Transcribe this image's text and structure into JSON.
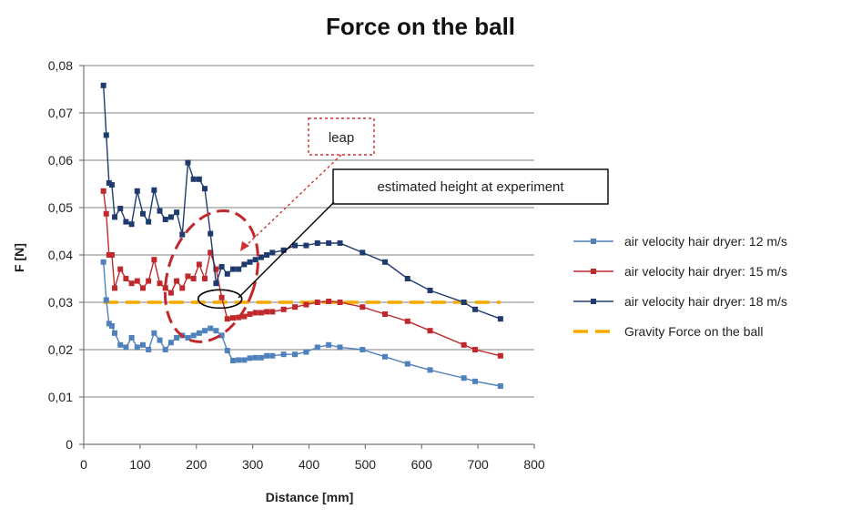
{
  "chart_data": {
    "type": "line",
    "title": "Force on the ball",
    "xlabel": "Distance [mm]",
    "ylabel": "F [N]",
    "xlim": [
      0,
      800
    ],
    "ylim": [
      0,
      0.08
    ],
    "xticks": [
      0,
      100,
      200,
      300,
      400,
      500,
      600,
      700,
      800
    ],
    "xtick_labels": [
      "0",
      "100",
      "200",
      "300",
      "400",
      "500",
      "600",
      "700",
      "800"
    ],
    "yticks": [
      0,
      0.01,
      0.02,
      0.03,
      0.04,
      0.05,
      0.06,
      0.07,
      0.08
    ],
    "ytick_labels": [
      "0",
      "0,01",
      "0,02",
      "0,03",
      "0,04",
      "0,05",
      "0,06",
      "0,07",
      "0,08"
    ],
    "grid": "horizontal",
    "legend_position": "right",
    "series": [
      {
        "name": "air velocity hair dryer: 12 m/s",
        "color": "#4f81bd",
        "marker": "square",
        "x": [
          35,
          40,
          45,
          50,
          55,
          65,
          75,
          85,
          95,
          105,
          115,
          125,
          135,
          145,
          155,
          165,
          175,
          185,
          195,
          205,
          215,
          225,
          235,
          245,
          255,
          265,
          275,
          285,
          295,
          305,
          315,
          325,
          335,
          355,
          375,
          395,
          415,
          435,
          455,
          495,
          535,
          575,
          615,
          675,
          695,
          740
        ],
        "y": [
          0.0385,
          0.0305,
          0.0255,
          0.025,
          0.0235,
          0.021,
          0.0205,
          0.0225,
          0.0205,
          0.021,
          0.02,
          0.0235,
          0.022,
          0.02,
          0.0215,
          0.0225,
          0.023,
          0.0225,
          0.023,
          0.0235,
          0.024,
          0.0245,
          0.024,
          0.023,
          0.0198,
          0.0177,
          0.0178,
          0.0178,
          0.0182,
          0.0183,
          0.0183,
          0.0187,
          0.0187,
          0.019,
          0.019,
          0.0195,
          0.0205,
          0.021,
          0.0205,
          0.02,
          0.0185,
          0.017,
          0.0157,
          0.014,
          0.0133,
          0.0123
        ]
      },
      {
        "name": "air velocity hair dryer: 15 m/s",
        "color": "#c0282b",
        "marker": "square",
        "x": [
          35,
          40,
          45,
          50,
          55,
          65,
          75,
          85,
          95,
          105,
          115,
          125,
          135,
          145,
          155,
          165,
          175,
          185,
          195,
          205,
          215,
          225,
          235,
          245,
          255,
          265,
          275,
          285,
          295,
          305,
          315,
          325,
          335,
          355,
          375,
          395,
          415,
          435,
          455,
          495,
          535,
          575,
          615,
          675,
          695,
          740
        ],
        "y": [
          0.0535,
          0.0487,
          0.04,
          0.04,
          0.033,
          0.037,
          0.035,
          0.034,
          0.0345,
          0.033,
          0.0345,
          0.039,
          0.034,
          0.033,
          0.032,
          0.0345,
          0.033,
          0.0355,
          0.035,
          0.038,
          0.035,
          0.0405,
          0.037,
          0.031,
          0.0265,
          0.0267,
          0.0268,
          0.027,
          0.0275,
          0.0278,
          0.0278,
          0.028,
          0.028,
          0.0285,
          0.029,
          0.0295,
          0.03,
          0.0302,
          0.03,
          0.029,
          0.0275,
          0.026,
          0.024,
          0.021,
          0.02,
          0.0187
        ]
      },
      {
        "name": "air velocity hair dryer: 18 m/s",
        "color": "#1f3a6e",
        "marker": "square",
        "x": [
          35,
          40,
          45,
          50,
          55,
          65,
          75,
          85,
          95,
          105,
          115,
          125,
          135,
          145,
          155,
          165,
          175,
          185,
          195,
          205,
          215,
          225,
          235,
          245,
          255,
          265,
          275,
          285,
          295,
          305,
          315,
          325,
          335,
          355,
          375,
          395,
          415,
          435,
          455,
          495,
          535,
          575,
          615,
          675,
          695,
          740
        ],
        "y": [
          0.0758,
          0.0653,
          0.0552,
          0.0548,
          0.048,
          0.0498,
          0.047,
          0.0465,
          0.0535,
          0.0487,
          0.047,
          0.0537,
          0.0493,
          0.0475,
          0.048,
          0.049,
          0.0443,
          0.0595,
          0.056,
          0.056,
          0.054,
          0.0445,
          0.034,
          0.0375,
          0.036,
          0.037,
          0.037,
          0.038,
          0.0385,
          0.039,
          0.0395,
          0.04,
          0.0405,
          0.041,
          0.042,
          0.042,
          0.0425,
          0.0425,
          0.0425,
          0.0405,
          0.0385,
          0.035,
          0.0325,
          0.03,
          0.0285,
          0.0265
        ]
      },
      {
        "name": "Gravity Force on the ball",
        "color": "#f5a800",
        "style": "dashed",
        "x": [
          35,
          740
        ],
        "y": [
          0.03,
          0.03
        ]
      }
    ],
    "annotations": [
      {
        "text": "leap",
        "box_style": "dotted red box",
        "points_to": "red dashed ellipse region"
      },
      {
        "text": "estimated height at experiment",
        "box_style": "solid box",
        "points_to": "black ellipse at 15 m/s curve crossing gravity line"
      }
    ]
  }
}
